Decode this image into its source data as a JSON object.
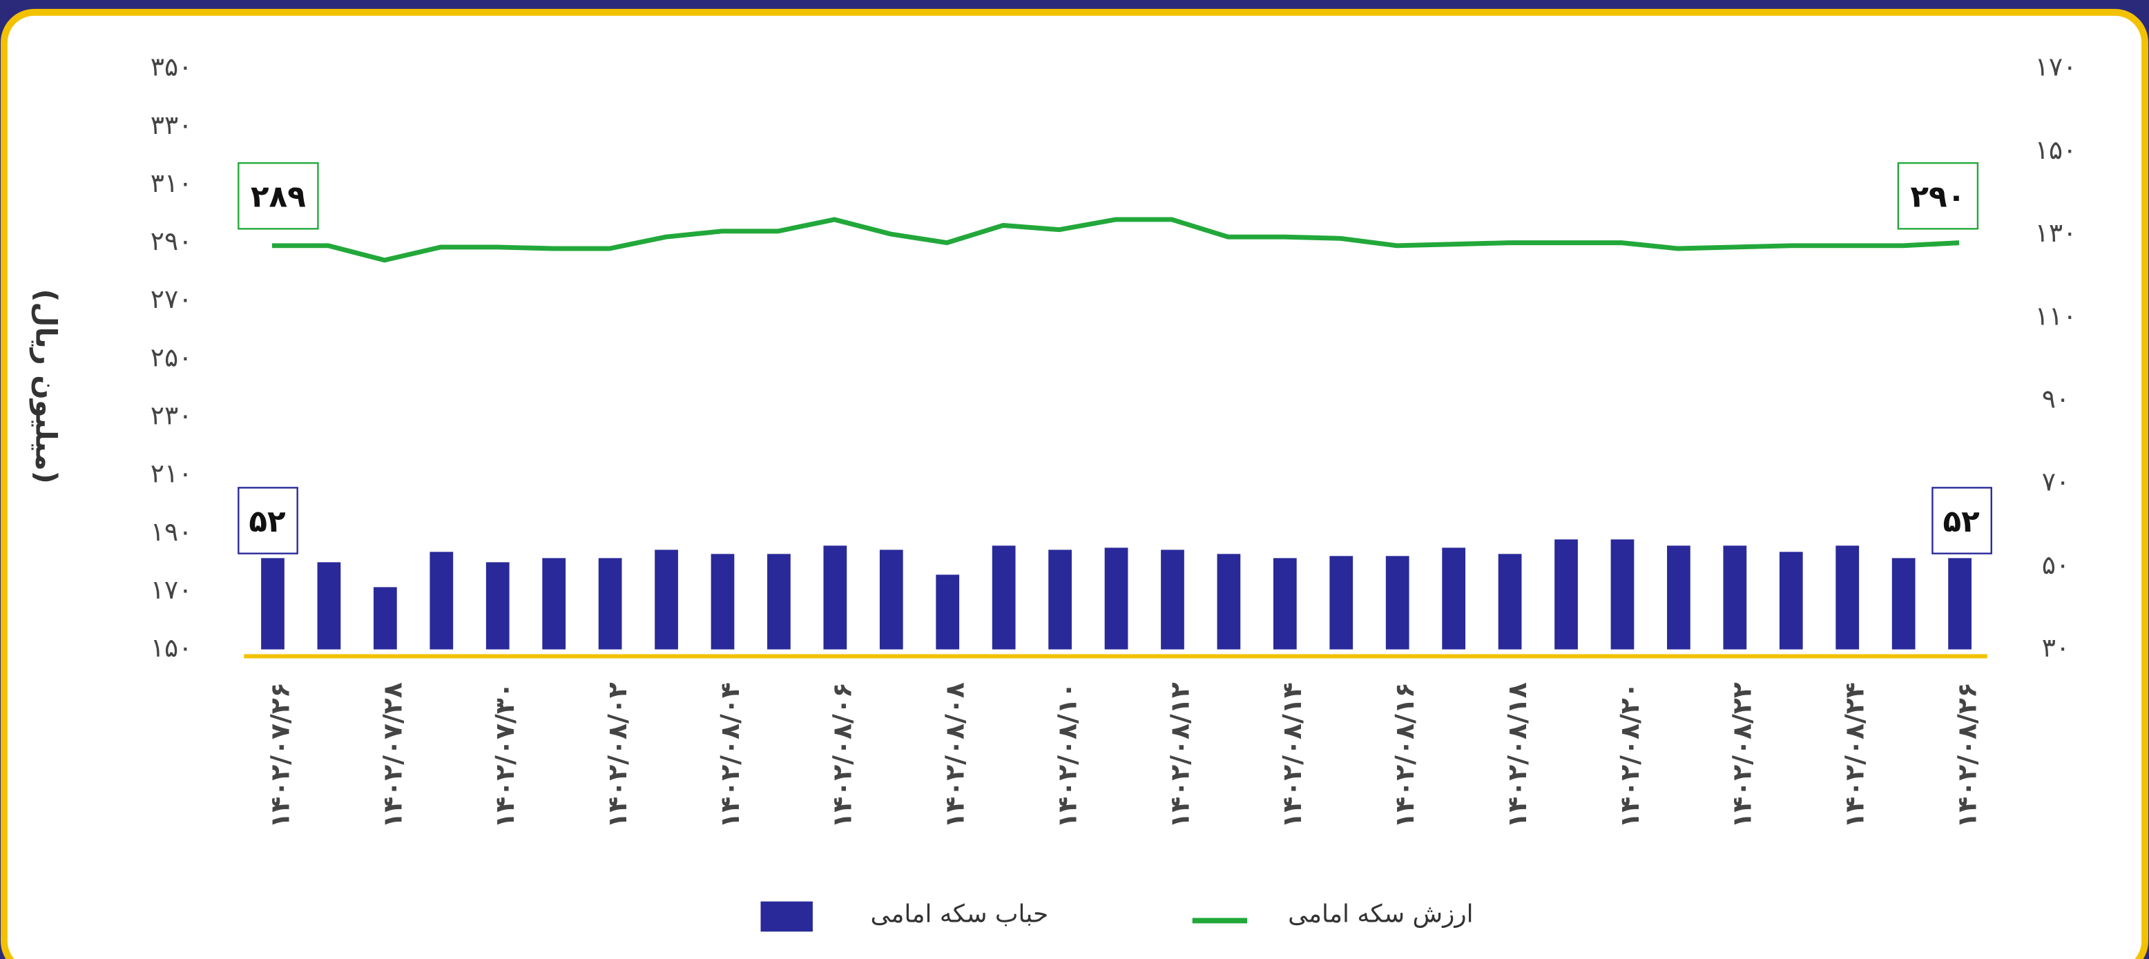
{
  "chart_data": {
    "type": "bar-line",
    "y_label": "(میلیون ریال)",
    "categories": [
      "۱۴۰۲/۰۷/۲۶",
      null,
      "۱۴۰۲/۰۷/۲۸",
      null,
      "۱۴۰۲/۰۷/۳۰",
      null,
      "۱۴۰۲/۰۸/۰۲",
      null,
      "۱۴۰۲/۰۸/۰۴",
      null,
      "۱۴۰۲/۰۸/۰۶",
      null,
      "۱۴۰۲/۰۸/۰۸",
      null,
      "۱۴۰۲/۰۸/۱۰",
      null,
      "۱۴۰۲/۰۸/۱۲",
      null,
      "۱۴۰۲/۰۸/۱۴",
      null,
      "۱۴۰۲/۰۸/۱۶",
      null,
      "۱۴۰۲/۰۸/۱۸",
      null,
      "۱۴۰۲/۰۸/۲۰",
      null,
      "۱۴۰۲/۰۸/۲۲",
      null,
      "۱۴۰۲/۰۸/۲۴",
      null,
      "۱۴۰۲/۰۸/۲۶"
    ],
    "series": [
      {
        "name": "حباب سکه  امامی",
        "color": "#29299a",
        "kind": "bar",
        "axis": "y2",
        "values": [
          52,
          51,
          45,
          53.5,
          51,
          52,
          52,
          54,
          53,
          53,
          55,
          54,
          48,
          55,
          54,
          54.5,
          54,
          53,
          52,
          52.5,
          52.5,
          54.5,
          53,
          56.5,
          56.5,
          55,
          55,
          53.5,
          55,
          52,
          52
        ],
        "value_labels": [
          "۵۲",
          null,
          null,
          null,
          null,
          null,
          null,
          null,
          null,
          null,
          null,
          null,
          null,
          null,
          null,
          null,
          null,
          null,
          null,
          null,
          null,
          null,
          null,
          null,
          null,
          null,
          null,
          null,
          null,
          null,
          "۵۲"
        ]
      },
      {
        "name": "ارزش سکه امامی",
        "color": "#22a83a",
        "kind": "line",
        "values": [
          289,
          289,
          284,
          288.5,
          288.5,
          288,
          288,
          292,
          294,
          294,
          298,
          293,
          290,
          296,
          294.5,
          298,
          298,
          292,
          292,
          291.5,
          289,
          289.5,
          290,
          290,
          290,
          288,
          288.5,
          289,
          289,
          289,
          290
        ],
        "value_labels": [
          "۲۸۹",
          null,
          null,
          null,
          null,
          null,
          null,
          null,
          null,
          null,
          null,
          null,
          null,
          null,
          null,
          null,
          null,
          null,
          null,
          null,
          null,
          null,
          null,
          null,
          null,
          null,
          null,
          null,
          null,
          null,
          "۲۹۰"
        ]
      }
    ],
    "ylim": [
      150,
      350
    ],
    "yticks": [
      {
        "value": 150,
        "label": "۱۵۰"
      },
      {
        "value": 170,
        "label": "۱۷۰"
      },
      {
        "value": 190,
        "label": "۱۹۰"
      },
      {
        "value": 210,
        "label": "۲۱۰"
      },
      {
        "value": 230,
        "label": "۲۳۰"
      },
      {
        "value": 250,
        "label": "۲۵۰"
      },
      {
        "value": 270,
        "label": "۲۷۰"
      },
      {
        "value": 290,
        "label": "۲۹۰"
      },
      {
        "value": 310,
        "label": "۳۱۰"
      },
      {
        "value": 330,
        "label": "۳۳۰"
      },
      {
        "value": 350,
        "label": "۳۵۰"
      }
    ],
    "y2lim": [
      30,
      170
    ],
    "y2ticks": [
      {
        "value": 30,
        "label": "۳۰"
      },
      {
        "value": 50,
        "label": "۵۰"
      },
      {
        "value": 70,
        "label": "۷۰"
      },
      {
        "value": 90,
        "label": "۹۰"
      },
      {
        "value": 110,
        "label": "۱۱۰"
      },
      {
        "value": 130,
        "label": "۱۳۰"
      },
      {
        "value": 150,
        "label": "۱۵۰"
      },
      {
        "value": 170,
        "label": "۱۷۰"
      }
    ]
  }
}
